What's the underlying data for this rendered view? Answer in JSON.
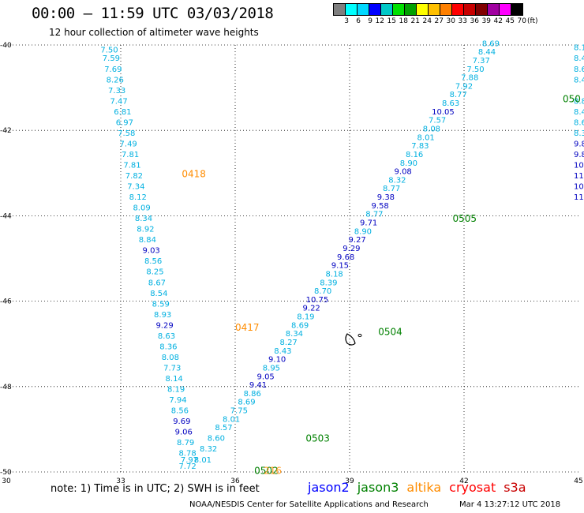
{
  "header": {
    "title": "00:00 – 11:59 UTC 03/03/2018",
    "subtitle": "12 hour collection of altimeter wave heights"
  },
  "legend": {
    "colors": [
      "#7f7f7f",
      "#00ffff",
      "#00d8ff",
      "#0000ff",
      "#00c8c8",
      "#00e000",
      "#00a000",
      "#ffff00",
      "#ffc000",
      "#ff8000",
      "#ff0000",
      "#c80000",
      "#800000",
      "#a000a0",
      "#ff00ff",
      "#000000"
    ],
    "labels": [
      "3",
      "6",
      "9",
      "12",
      "15",
      "18",
      "21",
      "24",
      "27",
      "30",
      "33",
      "36",
      "39",
      "42",
      "45",
      "70"
    ],
    "unit": "(ft)"
  },
  "axes": {
    "lon_ticks": [
      "30",
      "33",
      "36",
      "39",
      "42",
      "45"
    ],
    "lat_ticks": [
      "-40",
      "-42",
      "-44",
      "-46",
      "-48",
      "-50"
    ]
  },
  "tracks": [
    {
      "id": "track-0417-0418",
      "time_labels": [
        {
          "text": "0418",
          "lon": 34.6,
          "lat": -43.0
        },
        {
          "text": "0417",
          "lon": 36.0,
          "lat": -46.6
        }
      ],
      "label_color": "#ff8c00",
      "points": [
        [
          "7.50",
          32.7,
          -40.1,
          "#00b0e0"
        ],
        [
          "7.59",
          32.75,
          -40.3,
          "#00b0e0"
        ],
        [
          "7.69",
          32.8,
          -40.55,
          "#00b0e0"
        ],
        [
          "8.26",
          32.85,
          -40.8,
          "#00b0e0"
        ],
        [
          "7.33",
          32.9,
          -41.05,
          "#00b0e0"
        ],
        [
          "7.47",
          32.95,
          -41.3,
          "#00b0e0"
        ],
        [
          "6.81",
          33.05,
          -41.55,
          "#00b0e0"
        ],
        [
          "6.97",
          33.1,
          -41.8,
          "#00b0e0"
        ],
        [
          "7.58",
          33.15,
          -42.05,
          "#00b0e0"
        ],
        [
          "7.49",
          33.2,
          -42.3,
          "#00b0e0"
        ],
        [
          "7.81",
          33.25,
          -42.55,
          "#00b0e0"
        ],
        [
          "7.81",
          33.3,
          -42.8,
          "#00b0e0"
        ],
        [
          "7.82",
          33.35,
          -43.05,
          "#00b0e0"
        ],
        [
          "7.34",
          33.4,
          -43.3,
          "#00b0e0"
        ],
        [
          "8.12",
          33.45,
          -43.55,
          "#00b0e0"
        ],
        [
          "8.09",
          33.55,
          -43.8,
          "#00b0e0"
        ],
        [
          "8.34",
          33.6,
          -44.05,
          "#00b0e0"
        ],
        [
          "8.92",
          33.65,
          -44.3,
          "#00b0e0"
        ],
        [
          "8.84",
          33.7,
          -44.55,
          "#00b0e0"
        ],
        [
          "9.03",
          33.8,
          -44.8,
          "#0000c0"
        ],
        [
          "8.56",
          33.85,
          -45.05,
          "#00b0e0"
        ],
        [
          "8.25",
          33.9,
          -45.3,
          "#00b0e0"
        ],
        [
          "8.67",
          33.95,
          -45.55,
          "#00b0e0"
        ],
        [
          "8.54",
          34.0,
          -45.8,
          "#00b0e0"
        ],
        [
          "8.59",
          34.05,
          -46.05,
          "#00b0e0"
        ],
        [
          "8.93",
          34.1,
          -46.3,
          "#00b0e0"
        ],
        [
          "9.29",
          34.15,
          -46.55,
          "#0000c0"
        ],
        [
          "8.63",
          34.2,
          -46.8,
          "#00b0e0"
        ],
        [
          "8.36",
          34.25,
          -47.05,
          "#00b0e0"
        ],
        [
          "8.08",
          34.3,
          -47.3,
          "#00b0e0"
        ],
        [
          "7.73",
          34.35,
          -47.55,
          "#00b0e0"
        ],
        [
          "8.14",
          34.4,
          -47.8,
          "#00b0e0"
        ],
        [
          "8.19",
          34.45,
          -48.05,
          "#00b0e0"
        ],
        [
          "7.94",
          34.5,
          -48.3,
          "#00b0e0"
        ],
        [
          "8.56",
          34.55,
          -48.55,
          "#00b0e0"
        ],
        [
          "9.69",
          34.6,
          -48.8,
          "#0000c0"
        ],
        [
          "9.06",
          34.65,
          -49.05,
          "#0000c0"
        ],
        [
          "8.79",
          34.7,
          -49.3,
          "#00b0e0"
        ],
        [
          "8.78",
          34.75,
          -49.55,
          "#00b0e0"
        ],
        [
          "7.97",
          34.8,
          -49.7,
          "#00b0e0"
        ],
        [
          "7.72",
          34.75,
          -49.85,
          "#00b0e0"
        ]
      ]
    },
    {
      "id": "track-0503-0505",
      "time_labels": [
        {
          "text": "0503",
          "lon": 37.85,
          "lat": -49.2
        },
        {
          "text": "0504",
          "lon": 39.75,
          "lat": -46.7
        },
        {
          "text": "0505",
          "lon": 41.7,
          "lat": -44.05
        },
        {
          "text": "0502",
          "lon": 36.5,
          "lat": -49.95
        }
      ],
      "label_color": "#008000",
      "points": [
        [
          "8.01",
          35.15,
          -49.7,
          "#00b0e0"
        ],
        [
          "8.32",
          35.3,
          -49.45,
          "#00b0e0"
        ],
        [
          "8.60",
          35.5,
          -49.2,
          "#00b0e0"
        ],
        [
          "8.57",
          35.7,
          -48.95,
          "#00b0e0"
        ],
        [
          "8.01",
          35.9,
          -48.75,
          "#00b0e0"
        ],
        [
          "7.75",
          36.1,
          -48.55,
          "#00b0e0"
        ],
        [
          "8.69",
          36.3,
          -48.35,
          "#00b0e0"
        ],
        [
          "8.86",
          36.45,
          -48.15,
          "#00b0e0"
        ],
        [
          "9.41",
          36.6,
          -47.95,
          "#0000c0"
        ],
        [
          "9.05",
          36.8,
          -47.75,
          "#0000c0"
        ],
        [
          "8.95",
          36.95,
          -47.55,
          "#00b0e0"
        ],
        [
          "9.10",
          37.1,
          -47.35,
          "#0000c0"
        ],
        [
          "8.43",
          37.25,
          -47.15,
          "#00b0e0"
        ],
        [
          "8.27",
          37.4,
          -46.95,
          "#00b0e0"
        ],
        [
          "8.34",
          37.55,
          -46.75,
          "#00b0e0"
        ],
        [
          "8.69",
          37.7,
          -46.55,
          "#00b0e0"
        ],
        [
          "8.19",
          37.85,
          -46.35,
          "#00b0e0"
        ],
        [
          "9.22",
          38.0,
          -46.15,
          "#0000c0"
        ],
        [
          "10.75",
          38.15,
          -45.95,
          "#0000c0"
        ],
        [
          "8.70",
          38.3,
          -45.75,
          "#00b0e0"
        ],
        [
          "8.39",
          38.45,
          -45.55,
          "#00b0e0"
        ],
        [
          "8.18",
          38.6,
          -45.35,
          "#00b0e0"
        ],
        [
          "9.15",
          38.75,
          -45.15,
          "#0000c0"
        ],
        [
          "9.68",
          38.9,
          -44.95,
          "#0000c0"
        ],
        [
          "9.29",
          39.05,
          -44.75,
          "#0000c0"
        ],
        [
          "9.27",
          39.2,
          -44.55,
          "#0000c0"
        ],
        [
          "8.90",
          39.35,
          -44.35,
          "#00b0e0"
        ],
        [
          "9.71",
          39.5,
          -44.15,
          "#0000c0"
        ],
        [
          "8.77",
          39.65,
          -43.95,
          "#00b0e0"
        ],
        [
          "9.58",
          39.8,
          -43.75,
          "#0000c0"
        ],
        [
          "9.38",
          39.95,
          -43.55,
          "#0000c0"
        ],
        [
          "8.77",
          40.1,
          -43.35,
          "#00b0e0"
        ],
        [
          "8.32",
          40.25,
          -43.15,
          "#00b0e0"
        ],
        [
          "9.08",
          40.4,
          -42.95,
          "#0000c0"
        ],
        [
          "8.90",
          40.55,
          -42.75,
          "#00b0e0"
        ],
        [
          "8.16",
          40.7,
          -42.55,
          "#00b0e0"
        ],
        [
          "7.83",
          40.85,
          -42.35,
          "#00b0e0"
        ],
        [
          "8.01",
          41.0,
          -42.15,
          "#00b0e0"
        ],
        [
          "8.08",
          41.15,
          -41.95,
          "#00b0e0"
        ],
        [
          "7.57",
          41.3,
          -41.75,
          "#00b0e0"
        ],
        [
          "10.05",
          41.45,
          -41.55,
          "#0000c0"
        ],
        [
          "8.63",
          41.65,
          -41.35,
          "#00b0e0"
        ],
        [
          "8.77",
          41.85,
          -41.15,
          "#00b0e0"
        ],
        [
          "7.92",
          42.0,
          -40.95,
          "#00b0e0"
        ],
        [
          "7.88",
          42.15,
          -40.75,
          "#00b0e0"
        ],
        [
          "7.50",
          42.3,
          -40.55,
          "#00b0e0"
        ],
        [
          "7.37",
          42.45,
          -40.35,
          "#00b0e0"
        ],
        [
          "8.44",
          42.6,
          -40.15,
          "#00b0e0"
        ],
        [
          "8.69",
          42.7,
          -39.95,
          "#00b0e0"
        ]
      ]
    }
  ],
  "island": {
    "label": "",
    "lon": 39.0,
    "lat": -46.95
  },
  "note": "note:  1) Time is in UTC;  2) SWH is in feet",
  "satellites": [
    {
      "name": "jason2",
      "color": "#0000ff"
    },
    {
      "name": "jason3",
      "color": "#008000"
    },
    {
      "name": "altika",
      "color": "#ff8c00"
    },
    {
      "name": "cryosat",
      "color": "#ff0000"
    },
    {
      "name": "s3a",
      "color": "#c80000"
    }
  ],
  "credit": "NOAA/NESDIS Center for Satellite Applications and Research",
  "timestamp": "Mar  4 13:27:12 UTC 2018"
}
